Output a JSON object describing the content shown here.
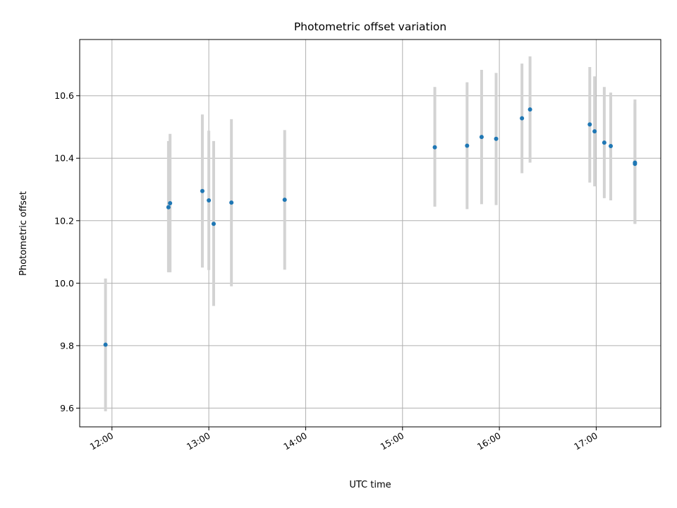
{
  "chart_data": {
    "type": "scatter",
    "title": "Photometric offset variation",
    "xlabel": "UTC time",
    "ylabel": "Photometric offset",
    "x_axis_type": "time",
    "xlim": [
      "11:40",
      "17:40"
    ],
    "ylim": [
      9.54,
      10.78
    ],
    "x_ticks": [
      "12:00",
      "13:00",
      "14:00",
      "15:00",
      "16:00",
      "17:00"
    ],
    "y_ticks": [
      9.6,
      9.8,
      10.0,
      10.2,
      10.4,
      10.6
    ],
    "y_tick_labels": [
      "9.6",
      "9.8",
      "10.0",
      "10.2",
      "10.4",
      "10.6"
    ],
    "grid": true,
    "point_color": "#1f77b4",
    "errorbar_color": "#d3d3d3",
    "points": [
      {
        "x": "11:56",
        "y": 9.803,
        "err_low": 9.59,
        "err_high": 10.015
      },
      {
        "x": "12:35",
        "y": 10.243,
        "err_low": 10.035,
        "err_high": 10.455
      },
      {
        "x": "12:36",
        "y": 10.256,
        "err_low": 10.035,
        "err_high": 10.478
      },
      {
        "x": "12:56",
        "y": 10.295,
        "err_low": 10.05,
        "err_high": 10.54
      },
      {
        "x": "13:00",
        "y": 10.265,
        "err_low": 10.042,
        "err_high": 10.488
      },
      {
        "x": "13:03",
        "y": 10.19,
        "err_low": 9.927,
        "err_high": 10.455
      },
      {
        "x": "13:14",
        "y": 10.258,
        "err_low": 9.99,
        "err_high": 10.525
      },
      {
        "x": "13:47",
        "y": 10.267,
        "err_low": 10.043,
        "err_high": 10.49
      },
      {
        "x": "15:20",
        "y": 10.435,
        "err_low": 10.245,
        "err_high": 10.628
      },
      {
        "x": "15:40",
        "y": 10.44,
        "err_low": 10.237,
        "err_high": 10.643
      },
      {
        "x": "15:49",
        "y": 10.468,
        "err_low": 10.253,
        "err_high": 10.683
      },
      {
        "x": "15:58",
        "y": 10.462,
        "err_low": 10.25,
        "err_high": 10.673
      },
      {
        "x": "16:14",
        "y": 10.528,
        "err_low": 10.352,
        "err_high": 10.703
      },
      {
        "x": "16:19",
        "y": 10.556,
        "err_low": 10.386,
        "err_high": 10.726
      },
      {
        "x": "16:56",
        "y": 10.508,
        "err_low": 10.322,
        "err_high": 10.692
      },
      {
        "x": "16:59",
        "y": 10.486,
        "err_low": 10.31,
        "err_high": 10.662
      },
      {
        "x": "17:05",
        "y": 10.45,
        "err_low": 10.272,
        "err_high": 10.628
      },
      {
        "x": "17:09",
        "y": 10.439,
        "err_low": 10.265,
        "err_high": 10.61
      },
      {
        "x": "17:24",
        "y": 10.386,
        "err_low": 10.19,
        "err_high": 10.588
      },
      {
        "x": "17:24",
        "y": 10.382,
        "err_low": 10.19,
        "err_high": 10.575
      }
    ]
  }
}
